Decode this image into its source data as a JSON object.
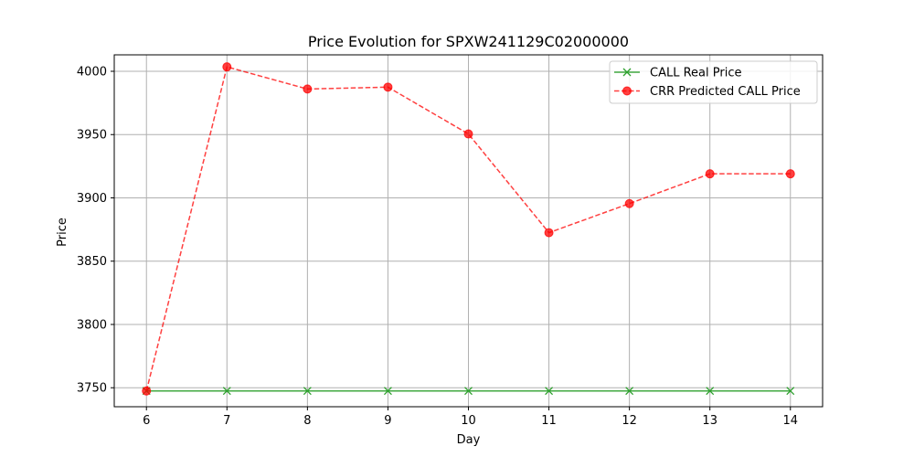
{
  "chart_data": {
    "type": "line",
    "title": "Price Evolution for SPXW241129C02000000",
    "xlabel": "Day",
    "ylabel": "Price",
    "x": [
      6,
      7,
      8,
      9,
      10,
      11,
      12,
      13,
      14
    ],
    "xlim": [
      5.6,
      14.4
    ],
    "ylim": [
      3735,
      4013
    ],
    "xticks": [
      6,
      7,
      8,
      9,
      10,
      11,
      12,
      13,
      14
    ],
    "yticks": [
      3750,
      3800,
      3850,
      3900,
      3950,
      4000
    ],
    "grid": true,
    "legend_position": "top-right",
    "series": [
      {
        "name": "CALL Real Price",
        "color": "#2ca02c",
        "line_style": "solid",
        "marker": "x",
        "values": [
          3747.5,
          3747.5,
          3747.5,
          3747.5,
          3747.5,
          3747.5,
          3747.5,
          3747.5,
          3747.5
        ]
      },
      {
        "name": "CRR Predicted CALL Price",
        "color": "#ff0000",
        "line_style": "dashed",
        "marker": "circle",
        "values": [
          3747.5,
          4003.5,
          3986,
          3987.5,
          3950.5,
          3872.5,
          3895.5,
          3919,
          3919
        ]
      }
    ]
  }
}
